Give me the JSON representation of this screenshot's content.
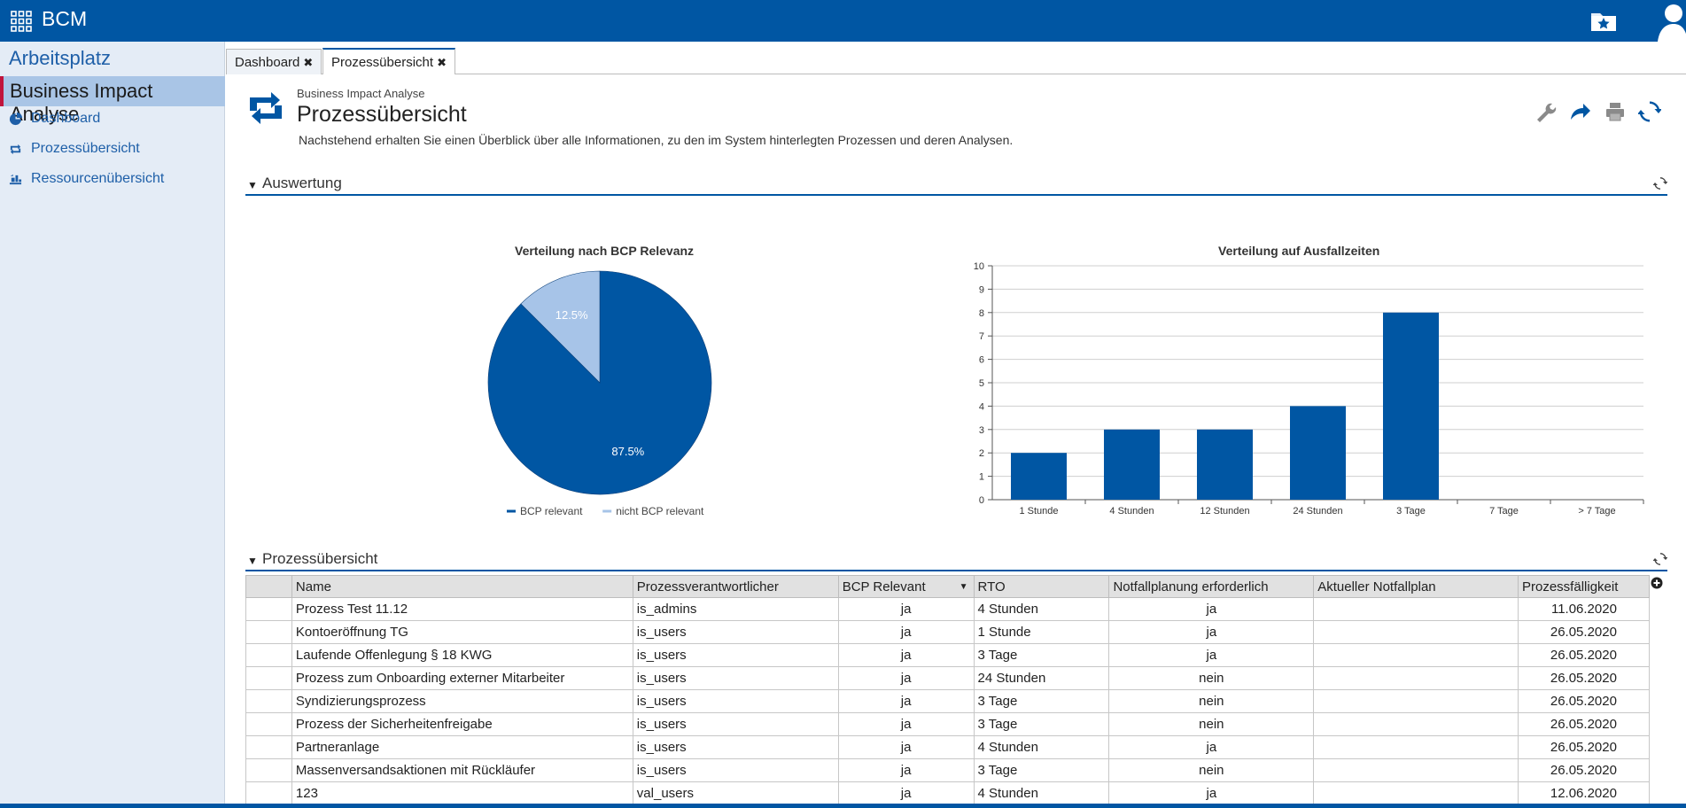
{
  "app": {
    "title": "BCM"
  },
  "sidebar": {
    "workspace": "Arbeitsplatz",
    "section": "Business Impact Analyse",
    "items": [
      {
        "label": "Dashboard",
        "icon": "pie-chart-icon"
      },
      {
        "label": "Prozessübersicht",
        "icon": "process-cycle-icon"
      },
      {
        "label": "Ressourcenübersicht",
        "icon": "resource-icon"
      }
    ]
  },
  "tabs": [
    {
      "label": "Dashboard",
      "close": "✖"
    },
    {
      "label": "Prozessübersicht",
      "close": "✖"
    }
  ],
  "page": {
    "breadcrumb": "Business Impact Analyse",
    "title": "Prozessübersicht",
    "description": "Nachstehend erhalten Sie einen Überblick über alle Informationen, zu den im System hinterlegten Prozessen und deren Analysen."
  },
  "sections": {
    "evaluation": "Auswertung",
    "overview": "Prozessübersicht"
  },
  "colors": {
    "primary": "#0056a3",
    "light": "#a7c4e8"
  },
  "chart_data": [
    {
      "type": "pie",
      "title": "Verteilung nach BCP Relevanz",
      "labels": [
        "BCP relevant",
        "nicht BCP relevant"
      ],
      "values": [
        87.5,
        12.5
      ],
      "display_labels": [
        "87.5%",
        "12.5%"
      ],
      "colors": [
        "#0056a3",
        "#a7c4e8"
      ],
      "legend": "bottom"
    },
    {
      "type": "bar",
      "title": "Verteilung auf Ausfallzeiten",
      "categories": [
        "1 Stunde",
        "4 Stunden",
        "12 Stunden",
        "24 Stunden",
        "3 Tage",
        "7 Tage",
        "> 7 Tage"
      ],
      "values": [
        2,
        3,
        3,
        4,
        8,
        0,
        0
      ],
      "ylim": [
        0,
        10
      ],
      "yticks": [
        "0",
        "1",
        "2",
        "3",
        "4",
        "5",
        "6",
        "7",
        "8",
        "9",
        "10"
      ],
      "grid": true
    }
  ],
  "table": {
    "columns": [
      "Name",
      "Prozessverantwortlicher",
      "BCP Relevant",
      "RTO",
      "Notfallplanung erforderlich",
      "Aktueller Notfallplan",
      "Prozessfälligkeit"
    ],
    "rows": [
      [
        "Prozess Test 11.12",
        "is_admins",
        "ja",
        "4 Stunden",
        "ja",
        "",
        "11.06.2020"
      ],
      [
        "Kontoeröffnung TG",
        "is_users",
        "ja",
        "1 Stunde",
        "ja",
        "",
        "26.05.2020"
      ],
      [
        "Laufende Offenlegung § 18 KWG",
        "is_users",
        "ja",
        "3 Tage",
        "ja",
        "",
        "26.05.2020"
      ],
      [
        "Prozess zum Onboarding externer Mitarbeiter",
        "is_users",
        "ja",
        "24 Stunden",
        "nein",
        "",
        "26.05.2020"
      ],
      [
        "Syndizierungsprozess",
        "is_users",
        "ja",
        "3 Tage",
        "nein",
        "",
        "26.05.2020"
      ],
      [
        "Prozess der Sicherheitenfreigabe",
        "is_users",
        "ja",
        "3 Tage",
        "nein",
        "",
        "26.05.2020"
      ],
      [
        "Partneranlage",
        "is_users",
        "ja",
        "4 Stunden",
        "ja",
        "",
        "26.05.2020"
      ],
      [
        "Massenversandsaktionen mit  Rückläufer",
        "is_users",
        "ja",
        "3 Tage",
        "nein",
        "",
        "26.05.2020"
      ],
      [
        "123",
        "val_users",
        "ja",
        "4 Stunden",
        "ja",
        "",
        "12.06.2020"
      ]
    ]
  }
}
